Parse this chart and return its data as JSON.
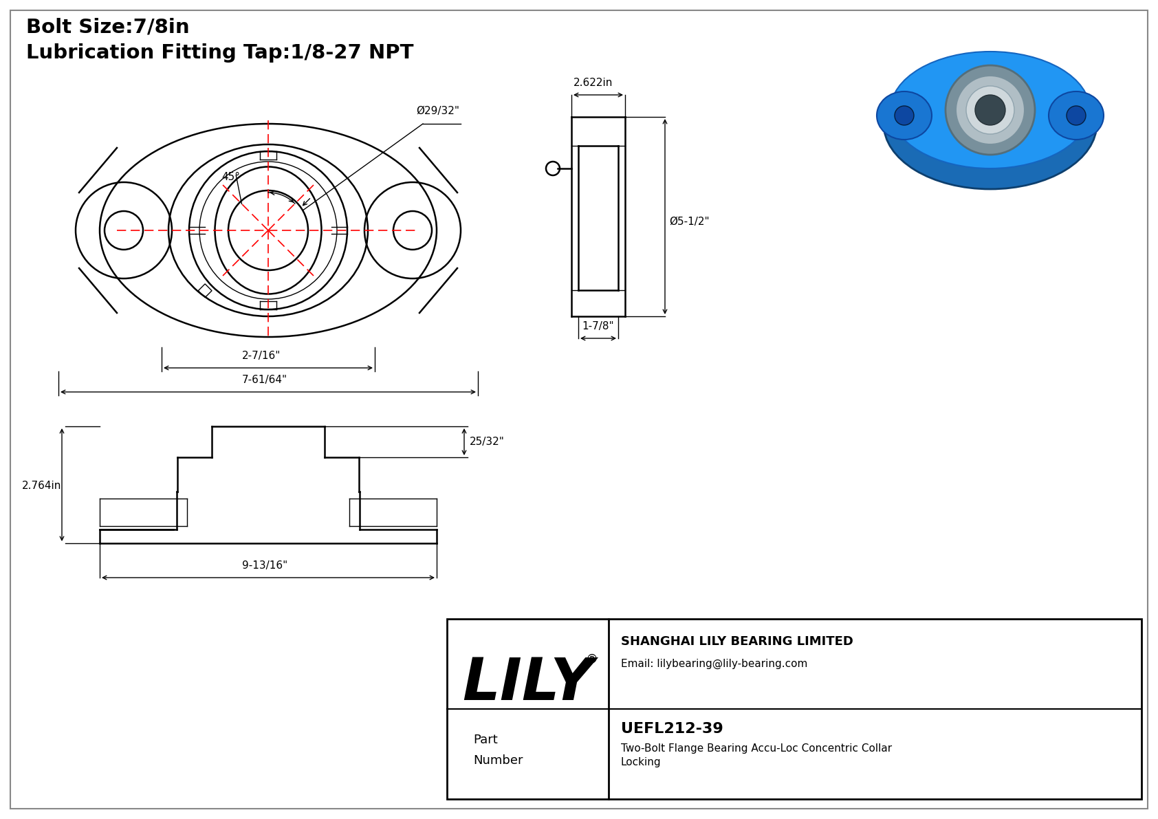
{
  "bg_color": "#ffffff",
  "border_color": "#000000",
  "line_color": "#000000",
  "red_color": "#ff0000",
  "title_line1": "Bolt Size:7/8in",
  "title_line2": "Lubrication Fitting Tap:1/8-27 NPT",
  "dim_45": "45°",
  "dim_bore": "Ø29/32\"",
  "dim_width_top": "2.622in",
  "dim_diameter": "Ø5-1/2\"",
  "dim_depth": "1-7/8\"",
  "dim_bolt_hole": "2-7/16\"",
  "dim_length": "7-61/64\"",
  "dim_height": "2.764in",
  "dim_width_bottom": "9-13/16\"",
  "dim_top_depth": "25/32\"",
  "part_number": "UEFL212-39",
  "part_desc1": "Two-Bolt Flange Bearing Accu-Loc Concentric Collar",
  "part_desc2": "Locking",
  "company": "SHANGHAI LILY BEARING LIMITED",
  "email": "Email: lilybearing@lily-bearing.com",
  "lily_text": "LILY",
  "lily_r": "®",
  "part_label_1": "Part",
  "part_label_2": "Number"
}
